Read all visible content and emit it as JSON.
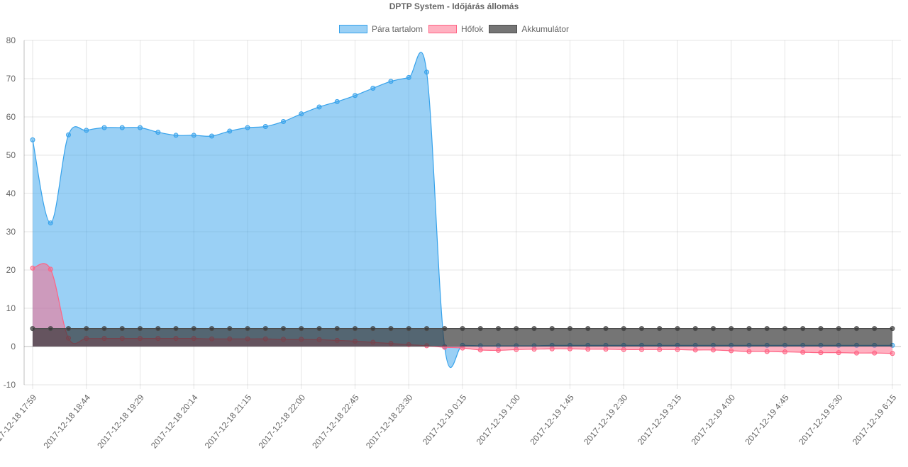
{
  "chart_data": {
    "type": "line",
    "title": "DPTP System - Időjárás állomás",
    "legend_position": "top",
    "grid": true,
    "ylim": [
      -10,
      80
    ],
    "y_ticks": [
      "80",
      "70",
      "60",
      "50",
      "40",
      "30",
      "20",
      "10",
      "0",
      "-10"
    ],
    "x_tick_labels": [
      "2017-12-18 17:59",
      "2017-12-18 18:44",
      "2017-12-18 19:29",
      "2017-12-18 20:14",
      "2017-12-18 21:15",
      "2017-12-18 22:00",
      "2017-12-18 22:45",
      "2017-12-18 23:30",
      "2017-12-19 0:15",
      "2017-12-19 1:00",
      "2017-12-19 1:45",
      "2017-12-19 2:30",
      "2017-12-19 3:15",
      "2017-12-19 4:00",
      "2017-12-19 4:45",
      "2017-12-19 5:30",
      "2017-12-19 6:15"
    ],
    "series": [
      {
        "name": "Pára tartalom",
        "color": "#36a2eb",
        "fill": "rgba(54,162,235,0.5)",
        "values": [
          54,
          32.3,
          55.3,
          56.5,
          57.2,
          57.2,
          57.2,
          56,
          55.2,
          55.2,
          55,
          56.3,
          57.2,
          57.5,
          58.8,
          60.8,
          62.6,
          64,
          65.6,
          67.5,
          69.3,
          70.3,
          71.7,
          0,
          0.3,
          0.2,
          0.2,
          0.2,
          0.2,
          0.3,
          0.3,
          0.3,
          0.3,
          0.3,
          0.3,
          0.3,
          0.3,
          0.3,
          0.3,
          0.3,
          0.3,
          0.3,
          0.3,
          0.3,
          0.3,
          0.3,
          0.3,
          0.3,
          0.3
        ]
      },
      {
        "name": "Hőfok",
        "color": "#ff6384",
        "fill": "rgba(255,99,132,0.5)",
        "values": [
          20.5,
          20.2,
          2.2,
          2.1,
          2.1,
          2.1,
          2.1,
          2.1,
          2.1,
          2.1,
          2,
          2,
          2,
          2,
          1.9,
          1.9,
          1.8,
          1.6,
          1.4,
          1.1,
          0.8,
          0.5,
          0.2,
          -0.2,
          -0.4,
          -0.9,
          -1,
          -0.8,
          -0.7,
          -0.6,
          -0.6,
          -0.7,
          -0.7,
          -0.8,
          -0.8,
          -0.8,
          -0.8,
          -0.9,
          -0.9,
          -1.1,
          -1.3,
          -1.3,
          -1.4,
          -1.5,
          -1.6,
          -1.6,
          -1.7,
          -1.7,
          -1.8
        ]
      },
      {
        "name": "Akkumulátor",
        "color": "#4d4d4d",
        "fill": "rgba(51,51,51,0.68)",
        "values": [
          4.7,
          4.7,
          4.7,
          4.7,
          4.7,
          4.7,
          4.7,
          4.7,
          4.7,
          4.7,
          4.7,
          4.7,
          4.7,
          4.7,
          4.7,
          4.7,
          4.7,
          4.7,
          4.7,
          4.7,
          4.7,
          4.7,
          4.7,
          4.7,
          4.7,
          4.7,
          4.7,
          4.7,
          4.7,
          4.7,
          4.7,
          4.7,
          4.7,
          4.7,
          4.7,
          4.7,
          4.7,
          4.7,
          4.7,
          4.7,
          4.7,
          4.7,
          4.7,
          4.7,
          4.7,
          4.7,
          4.7,
          4.7,
          4.7
        ]
      }
    ]
  }
}
